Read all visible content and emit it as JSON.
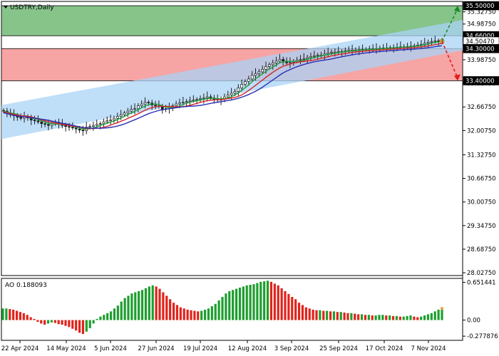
{
  "window": {
    "title": "USDTRY,Daily",
    "menu_icon": "triangle-down-icon"
  },
  "colors": {
    "up_zone": "#86c48a",
    "down_zone": "#f7a4a4",
    "channel": "#a9d3f5",
    "candle": "#1f1f1f",
    "ma_fast": "#1f9e3a",
    "ma_mid": "#d3262a",
    "ma_slow": "#2b2fb5",
    "arrow_up": "#1d8a2a",
    "arrow_down": "#e01b1b",
    "ao_up": "#1e9e2f",
    "ao_down": "#e0231b",
    "grid": "#c0c0c0"
  },
  "chart_data": [
    {
      "type": "candlestick",
      "title": "USDTRY,Daily",
      "ylim": [
        27.95,
        35.62
      ],
      "y_ticks": [
        "35.32750",
        "34.98750",
        "33.98750",
        "33.32750",
        "32.66750",
        "32.00750",
        "31.32750",
        "30.66750",
        "30.00750",
        "29.34750",
        "28.68750",
        "28.02750"
      ],
      "price_labels": [
        {
          "label": "35.50000",
          "value": 35.5,
          "role": "target-high"
        },
        {
          "label": "34.66000",
          "value": 34.66,
          "role": "level"
        },
        {
          "label": "34.50470",
          "value": 34.5047,
          "role": "current-price"
        },
        {
          "label": "34.30000",
          "value": 34.3,
          "role": "level"
        },
        {
          "label": "33.40000",
          "value": 33.4,
          "role": "target-low"
        }
      ],
      "x_labels": [
        "22 Apr 2024",
        "14 May 2024",
        "5 Jun 2024",
        "27 Jun 2024",
        "19 Jul 2024",
        "12 Aug 2024",
        "3 Sep 2024",
        "25 Sep 2024",
        "17 Oct 2024",
        "7 Nov 2024"
      ],
      "zones": {
        "buy_zone": [
          34.66,
          35.5
        ],
        "sell_zone": [
          33.4,
          34.3
        ]
      },
      "closes": [
        32.55,
        32.5,
        32.45,
        32.42,
        32.38,
        32.35,
        32.4,
        32.36,
        32.3,
        32.28,
        32.25,
        32.2,
        32.18,
        32.15,
        32.2,
        32.22,
        32.18,
        32.15,
        32.12,
        32.1,
        32.08,
        32.05,
        32.02,
        32.0,
        32.1,
        32.12,
        32.15,
        32.18,
        32.2,
        32.25,
        32.28,
        32.3,
        32.35,
        32.4,
        32.45,
        32.5,
        32.55,
        32.6,
        32.62,
        32.7,
        32.75,
        32.8,
        32.78,
        32.72,
        32.7,
        32.68,
        32.6,
        32.62,
        32.65,
        32.7,
        32.75,
        32.78,
        32.8,
        32.82,
        32.85,
        32.86,
        32.88,
        32.9,
        32.92,
        32.95,
        32.9,
        32.88,
        32.86,
        32.9,
        32.95,
        33.0,
        33.05,
        33.1,
        33.2,
        33.3,
        33.38,
        33.45,
        33.55,
        33.6,
        33.65,
        33.72,
        33.8,
        33.85,
        33.9,
        33.95,
        34.0,
        33.95,
        33.9,
        33.92,
        33.95,
        33.98,
        34.0,
        34.02,
        34.05,
        34.08,
        34.1,
        34.12,
        34.12,
        34.15,
        34.18,
        34.2,
        34.2,
        34.22,
        34.22,
        34.24,
        34.25,
        34.26,
        34.26,
        34.27,
        34.28,
        34.28,
        34.29,
        34.3,
        34.3,
        34.31,
        34.32,
        34.32,
        34.33,
        34.33,
        34.34,
        34.35,
        34.35,
        34.36,
        34.37,
        34.38,
        34.4,
        34.42,
        34.45,
        34.48,
        34.5,
        34.52,
        34.5,
        34.5047
      ]
    },
    {
      "type": "bar",
      "title": "AO 0.188093",
      "ylim": [
        -0.35,
        0.72
      ],
      "y_ticks": [
        "0.651441",
        "0.00",
        "-0.277876"
      ],
      "values": [
        0.2,
        0.2,
        0.19,
        0.18,
        0.16,
        0.14,
        0.12,
        0.09,
        0.05,
        0.02,
        -0.03,
        -0.06,
        -0.08,
        -0.06,
        -0.04,
        -0.05,
        -0.07,
        -0.08,
        -0.1,
        -0.12,
        -0.15,
        -0.18,
        -0.22,
        -0.24,
        -0.2,
        -0.14,
        -0.06,
        0.02,
        0.06,
        0.09,
        0.12,
        0.15,
        0.2,
        0.25,
        0.32,
        0.38,
        0.42,
        0.46,
        0.48,
        0.5,
        0.52,
        0.55,
        0.58,
        0.6,
        0.58,
        0.54,
        0.48,
        0.42,
        0.36,
        0.3,
        0.26,
        0.22,
        0.2,
        0.18,
        0.17,
        0.16,
        0.15,
        0.16,
        0.18,
        0.2,
        0.24,
        0.28,
        0.34,
        0.4,
        0.46,
        0.5,
        0.52,
        0.54,
        0.56,
        0.58,
        0.6,
        0.61,
        0.62,
        0.64,
        0.66,
        0.67,
        0.68,
        0.66,
        0.63,
        0.6,
        0.55,
        0.5,
        0.45,
        0.4,
        0.36,
        0.3,
        0.26,
        0.22,
        0.2,
        0.18,
        0.17,
        0.17,
        0.16,
        0.16,
        0.15,
        0.15,
        0.14,
        0.14,
        0.13,
        0.12,
        0.12,
        0.11,
        0.1,
        0.1,
        0.09,
        0.09,
        0.08,
        0.08,
        0.09,
        0.09,
        0.08,
        0.08,
        0.07,
        0.07,
        0.06,
        0.06,
        0.07,
        0.08,
        0.06,
        0.05,
        0.06,
        0.08,
        0.1,
        0.12,
        0.15,
        0.18,
        0.188093
      ]
    }
  ]
}
